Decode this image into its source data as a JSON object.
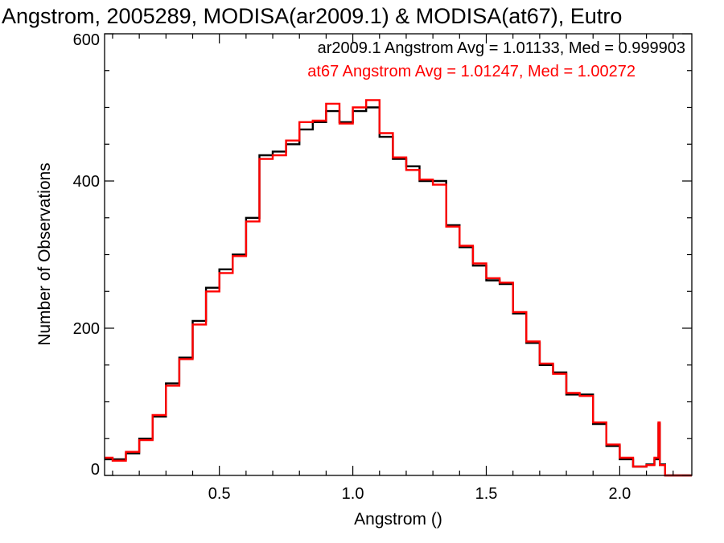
{
  "chart_data": {
    "type": "line",
    "step": true,
    "title": "Angstrom, 2005289, MODISA(ar2009.1) & MODISA(at67), Eutro",
    "xlabel": "Angstrom ()",
    "ylabel": "Number of Observations",
    "xlim": [
      0.07,
      2.27
    ],
    "ylim": [
      0,
      600
    ],
    "x_ticks": [
      0.5,
      1.0,
      1.5,
      2.0
    ],
    "x_tick_labels": [
      "0.5",
      "1.0",
      "1.5",
      "2.0"
    ],
    "y_ticks": [
      0,
      200,
      400,
      600
    ],
    "y_tick_labels": [
      "0",
      "200",
      "400",
      "600"
    ],
    "grid": false,
    "legend": "top-right",
    "annotations": [
      "ar2009.1 Angstrom Avg = 1.01133, Med = 0.999903",
      "at67 Angstrom Avg = 1.01247, Med = 1.00272"
    ],
    "series": [
      {
        "name": "ar2009.1",
        "color": "#000000",
        "x": [
          0.07,
          0.1,
          0.15,
          0.2,
          0.25,
          0.3,
          0.35,
          0.4,
          0.45,
          0.5,
          0.55,
          0.6,
          0.65,
          0.7,
          0.75,
          0.8,
          0.85,
          0.9,
          0.95,
          1.0,
          1.05,
          1.1,
          1.15,
          1.2,
          1.25,
          1.3,
          1.35,
          1.4,
          1.45,
          1.5,
          1.55,
          1.6,
          1.65,
          1.7,
          1.75,
          1.8,
          1.85,
          1.9,
          1.95,
          2.0,
          2.05,
          2.1,
          2.13,
          2.145,
          2.15,
          2.17,
          2.27
        ],
        "y": [
          22,
          22,
          30,
          50,
          80,
          125,
          160,
          210,
          255,
          280,
          300,
          350,
          435,
          440,
          450,
          470,
          480,
          495,
          480,
          495,
          500,
          460,
          430,
          420,
          400,
          400,
          340,
          310,
          285,
          265,
          260,
          220,
          180,
          150,
          140,
          110,
          110,
          70,
          40,
          22,
          12,
          15,
          22,
          70,
          15,
          0,
          0
        ]
      },
      {
        "name": "at67",
        "color": "#ff0000",
        "x": [
          0.07,
          0.1,
          0.15,
          0.2,
          0.25,
          0.3,
          0.35,
          0.4,
          0.45,
          0.5,
          0.55,
          0.6,
          0.65,
          0.7,
          0.75,
          0.8,
          0.85,
          0.9,
          0.95,
          1.0,
          1.05,
          1.1,
          1.15,
          1.2,
          1.25,
          1.3,
          1.35,
          1.4,
          1.45,
          1.5,
          1.55,
          1.6,
          1.65,
          1.7,
          1.75,
          1.8,
          1.85,
          1.9,
          1.95,
          2.0,
          2.05,
          2.1,
          2.13,
          2.145,
          2.15,
          2.17,
          2.27
        ],
        "y": [
          24,
          20,
          32,
          48,
          82,
          122,
          158,
          205,
          250,
          275,
          298,
          345,
          430,
          435,
          455,
          480,
          482,
          505,
          478,
          500,
          510,
          465,
          432,
          415,
          402,
          395,
          338,
          312,
          288,
          268,
          262,
          222,
          182,
          152,
          138,
          112,
          108,
          72,
          42,
          24,
          12,
          14,
          24,
          72,
          14,
          0,
          0
        ]
      }
    ]
  }
}
